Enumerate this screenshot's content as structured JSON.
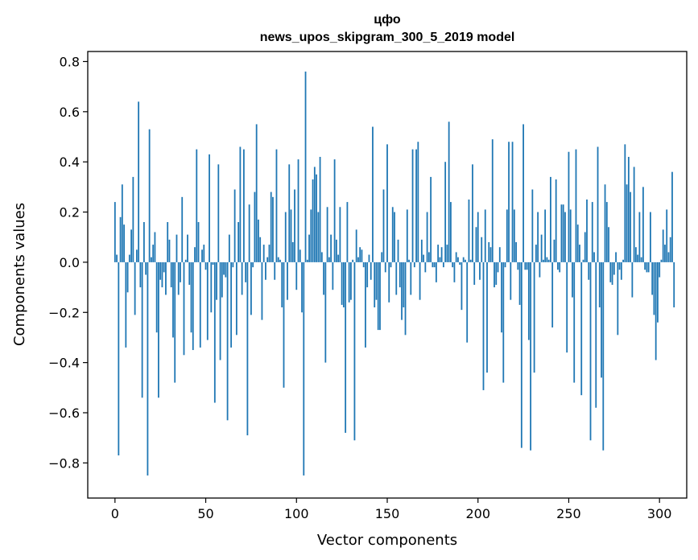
{
  "chart_data": {
    "type": "bar",
    "title_line1": "цфо",
    "title_line2": "news_upos_skipgram_300_5_2019 model",
    "xlabel": "Vector components",
    "ylabel": "Components values",
    "xlim": [
      -15,
      315
    ],
    "ylim": [
      -0.94,
      0.84
    ],
    "xticks": [
      0,
      50,
      100,
      150,
      200,
      250,
      300
    ],
    "xtick_labels": [
      "0",
      "50",
      "100",
      "150",
      "200",
      "250",
      "300"
    ],
    "yticks": [
      -0.8,
      -0.6,
      -0.4,
      -0.2,
      0.0,
      0.2,
      0.4,
      0.6,
      0.8
    ],
    "ytick_labels": [
      "−0.8",
      "−0.6",
      "−0.4",
      "−0.2",
      "0.0",
      "0.2",
      "0.4",
      "0.6",
      "0.8"
    ],
    "bar_color": "#1f77b4",
    "grid": false,
    "values": [
      0.24,
      0.03,
      -0.77,
      0.18,
      0.31,
      0.15,
      -0.34,
      -0.12,
      0.03,
      0.13,
      0.34,
      -0.21,
      0.05,
      0.64,
      -0.1,
      -0.54,
      0.16,
      -0.05,
      -0.85,
      0.53,
      0.02,
      0.07,
      0.12,
      -0.28,
      -0.54,
      -0.07,
      -0.1,
      -0.04,
      -0.13,
      0.16,
      0.09,
      -0.1,
      -0.3,
      -0.48,
      0.11,
      -0.13,
      -0.08,
      0.26,
      -0.37,
      0.01,
      0.11,
      -0.09,
      -0.28,
      -0.35,
      0.06,
      0.45,
      0.16,
      -0.34,
      0.05,
      0.07,
      -0.03,
      -0.31,
      0.43,
      -0.2,
      -0.01,
      -0.56,
      -0.15,
      0.39,
      -0.39,
      -0.14,
      -0.05,
      -0.06,
      -0.63,
      0.11,
      -0.34,
      -0.02,
      0.29,
      -0.29,
      0.16,
      0.46,
      -0.13,
      0.45,
      -0.08,
      -0.69,
      0.23,
      -0.21,
      -0.02,
      0.28,
      0.55,
      0.17,
      0.1,
      -0.23,
      0.07,
      -0.07,
      0.02,
      0.07,
      0.28,
      0.26,
      -0.07,
      0.45,
      0.02,
      0.01,
      -0.18,
      -0.5,
      0.2,
      -0.15,
      0.39,
      0.21,
      0.08,
      0.29,
      -0.11,
      0.41,
      0.05,
      -0.2,
      -0.85,
      0.76,
      0.01,
      0.11,
      0.21,
      0.33,
      0.38,
      0.35,
      0.2,
      0.42,
      0.04,
      -0.13,
      -0.4,
      0.22,
      0.02,
      0.11,
      -0.11,
      0.41,
      0.09,
      0.03,
      0.22,
      -0.17,
      -0.18,
      -0.68,
      0.24,
      -0.16,
      -0.15,
      0.01,
      -0.71,
      0.13,
      0.02,
      0.06,
      0.05,
      -0.02,
      -0.34,
      -0.1,
      0.03,
      -0.07,
      0.54,
      -0.18,
      -0.15,
      -0.27,
      -0.27,
      0.04,
      0.29,
      -0.04,
      0.47,
      -0.16,
      -0.02,
      0.22,
      0.2,
      -0.13,
      0.09,
      -0.1,
      -0.23,
      -0.18,
      -0.29,
      0.21,
      0.01,
      -0.13,
      0.45,
      -0.02,
      0.45,
      0.48,
      -0.15,
      0.09,
      0.03,
      -0.04,
      0.2,
      0.04,
      0.34,
      -0.02,
      -0.02,
      -0.08,
      0.07,
      0.02,
      0.06,
      -0.02,
      0.4,
      0.07,
      0.56,
      0.24,
      -0.02,
      -0.08,
      0.04,
      0.02,
      -0.01,
      -0.19,
      0.02,
      0.01,
      -0.32,
      0.25,
      0.01,
      0.39,
      -0.09,
      0.14,
      0.2,
      -0.07,
      0.1,
      -0.51,
      0.21,
      -0.44,
      0.08,
      0.06,
      0.49,
      -0.1,
      -0.09,
      -0.04,
      0.06,
      -0.28,
      -0.48,
      -0.02,
      0.21,
      0.48,
      -0.15,
      0.48,
      0.21,
      0.08,
      -0.03,
      -0.17,
      -0.74,
      0.55,
      -0.03,
      -0.03,
      -0.31,
      -0.75,
      0.29,
      -0.44,
      0.07,
      0.2,
      -0.06,
      0.11,
      0.01,
      0.21,
      0.02,
      0.01,
      0.34,
      -0.26,
      0.09,
      0.33,
      -0.03,
      -0.04,
      0.23,
      0.23,
      0.2,
      -0.36,
      0.44,
      0.21,
      -0.14,
      -0.48,
      0.45,
      0.15,
      0.07,
      -0.53,
      0.01,
      0.12,
      0.25,
      -0.07,
      -0.71,
      0.24,
      0.04,
      -0.58,
      0.46,
      -0.18,
      -0.46,
      -0.75,
      0.31,
      0.24,
      0.14,
      -0.08,
      -0.09,
      -0.05,
      0.04,
      -0.29,
      -0.03,
      -0.07,
      0.01,
      0.47,
      0.31,
      0.42,
      0.28,
      -0.14,
      0.38,
      0.06,
      0.03,
      0.2,
      0.02,
      0.3,
      -0.03,
      -0.04,
      -0.04,
      0.2,
      -0.13,
      -0.21,
      -0.39,
      -0.24,
      -0.06,
      0.01,
      0.13,
      0.07,
      0.21,
      0.04,
      0.1,
      0.36,
      -0.18
    ]
  }
}
